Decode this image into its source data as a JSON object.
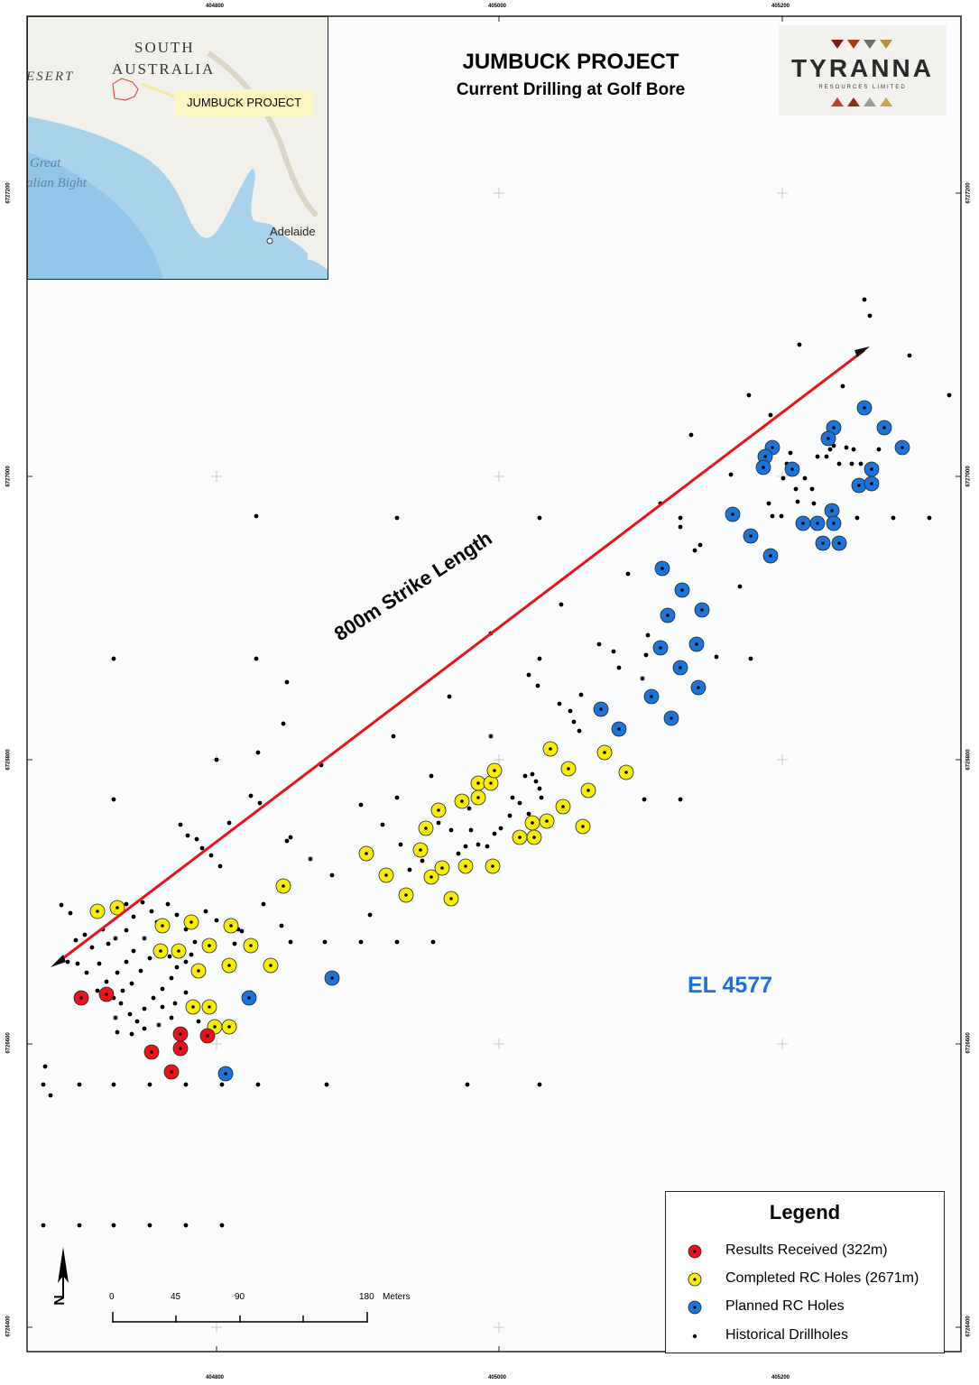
{
  "title": {
    "main": "JUMBUCK PROJECT",
    "sub": "Current Drilling at Golf Bore"
  },
  "logo": {
    "name": "TYRANNA",
    "tagline": "RESOURCES LIMITED"
  },
  "inset": {
    "state_label_1": "SOUTH",
    "state_label_2": "AUSTRALIA",
    "desert": "ESERT",
    "bight_1": "Great",
    "bight_2": "alian Bight",
    "city": "Adelaide",
    "project_label": "JUMBUCK PROJECT"
  },
  "annotation": {
    "strike": "800m Strike Length",
    "tenement": "EL 4577"
  },
  "grid": {
    "top_labels": [
      "404800",
      "405000",
      "405200"
    ],
    "bottom_labels": [
      "404800",
      "405000",
      "405200"
    ],
    "side_labels": [
      "6727200",
      "6727000",
      "6726800",
      "6726600",
      "6726400"
    ]
  },
  "scalebar": {
    "ticks": [
      "0",
      "45",
      "90",
      "180"
    ],
    "units": "Meters"
  },
  "north": "N",
  "legend": {
    "title": "Legend",
    "items": [
      {
        "label": "Results Received (322m)",
        "color": "#e8141c"
      },
      {
        "label": "Completed RC Holes (2671m)",
        "color": "#f6ec0c"
      },
      {
        "label": "Planned RC Holes",
        "color": "#1d74d8"
      },
      {
        "label": "Historical Drillholes",
        "color": "#000000"
      }
    ]
  },
  "colors": {
    "results": "#e8141c",
    "completed": "#f6ec0c",
    "planned": "#1d74d8",
    "historical": "#000000",
    "strike_arrow": "#e3141b",
    "tenement_label": "#1f6fd6"
  }
}
